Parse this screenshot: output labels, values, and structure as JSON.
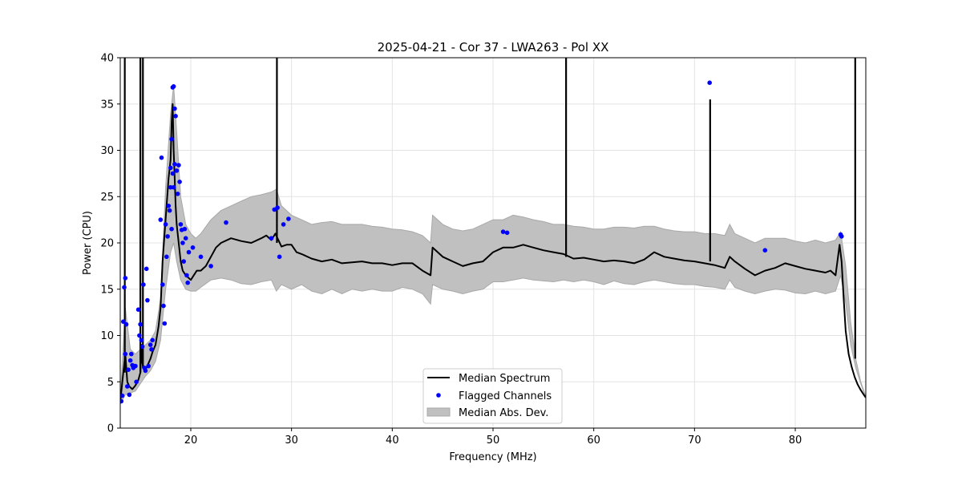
{
  "chart_data": {
    "type": "line",
    "title": "2025-04-21 - Cor 37 - LWA263 - Pol XX",
    "xlabel": "Frequency (MHz)",
    "ylabel": "Power (CPU)",
    "xlim": [
      13.0,
      87.0
    ],
    "ylim": [
      0,
      40
    ],
    "xticks": [
      20,
      30,
      40,
      50,
      60,
      70,
      80
    ],
    "yticks": [
      0,
      5,
      10,
      15,
      20,
      25,
      30,
      35,
      40
    ],
    "grid": true,
    "legend_position": "lower-center",
    "colors": {
      "median": "#000000",
      "flagged": "#0000ff",
      "mad": "#c0c0c0",
      "mad_edge": "#a8a8a8"
    },
    "series": [
      {
        "name": "Median Spectrum",
        "kind": "line",
        "x": [
          13.0,
          13.3,
          13.5,
          13.7,
          13.9,
          14.2,
          14.5,
          14.8,
          15.0,
          15.1,
          15.2,
          15.4,
          15.6,
          15.8,
          16.0,
          16.2,
          16.5,
          16.8,
          17.0,
          17.2,
          17.4,
          17.6,
          17.8,
          18.0,
          18.1,
          18.2,
          18.3,
          18.4,
          18.5,
          18.6,
          18.8,
          19.0,
          19.2,
          19.5,
          19.8,
          20.0,
          20.3,
          20.6,
          21.0,
          21.5,
          22.0,
          22.5,
          23.0,
          24.0,
          25.0,
          26.0,
          27.0,
          27.5,
          28.0,
          28.4,
          29.0,
          29.5,
          30.0,
          30.5,
          31.0,
          32.0,
          33.0,
          34.0,
          35.0,
          36.0,
          37.0,
          38.0,
          39.0,
          40.0,
          41.0,
          42.0,
          43.0,
          43.8,
          44.0,
          45.0,
          46.0,
          47.0,
          48.0,
          49.0,
          50.0,
          51.0,
          52.0,
          53.0,
          54.0,
          55.0,
          56.0,
          57.0,
          58.0,
          59.0,
          60.0,
          61.0,
          62.0,
          63.0,
          64.0,
          65.0,
          66.0,
          67.0,
          68.0,
          69.0,
          70.0,
          71.0,
          72.0,
          73.0,
          73.5,
          74.0,
          75.0,
          76.0,
          77.0,
          78.0,
          79.0,
          80.0,
          81.0,
          82.0,
          83.0,
          83.5,
          84.0,
          84.4,
          84.6,
          84.8,
          85.0,
          85.3,
          85.6,
          85.9,
          86.2,
          86.5,
          86.8,
          87.0
        ],
        "y": [
          2.8,
          6.0,
          8.0,
          5.0,
          4.5,
          4.2,
          4.6,
          5.2,
          6.0,
          9.0,
          7.0,
          6.2,
          6.5,
          7.0,
          7.5,
          8.2,
          9.0,
          11.0,
          13.0,
          18.0,
          21.0,
          24.0,
          27.0,
          29.0,
          33.0,
          35.0,
          30.0,
          27.0,
          24.0,
          22.0,
          20.0,
          18.0,
          17.0,
          16.5,
          16.2,
          16.0,
          16.5,
          17.0,
          17.0,
          17.5,
          18.5,
          19.5,
          20.0,
          20.5,
          20.2,
          20.0,
          20.5,
          20.8,
          20.3,
          21.0,
          19.6,
          19.8,
          19.8,
          19.0,
          18.8,
          18.3,
          18.0,
          18.2,
          17.8,
          17.9,
          18.0,
          17.8,
          17.8,
          17.6,
          17.8,
          17.8,
          17.0,
          16.5,
          19.5,
          18.5,
          18.0,
          17.5,
          17.8,
          18.0,
          19.0,
          19.5,
          19.5,
          19.8,
          19.5,
          19.2,
          19.0,
          18.8,
          18.3,
          18.4,
          18.2,
          18.0,
          18.1,
          18.0,
          17.8,
          18.2,
          19.0,
          18.5,
          18.3,
          18.1,
          18.0,
          17.8,
          17.6,
          17.3,
          18.5,
          18.0,
          17.2,
          16.5,
          17.0,
          17.3,
          17.8,
          17.5,
          17.2,
          17.0,
          16.8,
          17.0,
          16.5,
          19.8,
          18.0,
          14.0,
          10.5,
          8.0,
          6.6,
          5.5,
          4.7,
          4.1,
          3.6,
          3.3
        ]
      },
      {
        "name": "Flagged Channels",
        "kind": "scatter",
        "x": [
          13.1,
          13.2,
          13.3,
          13.4,
          13.5,
          13.5,
          13.6,
          13.7,
          13.8,
          13.9,
          14.0,
          14.1,
          14.2,
          14.3,
          14.5,
          14.6,
          14.8,
          14.9,
          15.0,
          15.1,
          15.2,
          15.3,
          15.4,
          15.5,
          15.6,
          15.7,
          15.8,
          16.0,
          16.1,
          16.2,
          17.0,
          17.1,
          17.2,
          17.3,
          17.4,
          17.5,
          17.6,
          17.7,
          17.8,
          17.9,
          18.0,
          18.0,
          18.1,
          18.1,
          18.2,
          18.2,
          18.3,
          18.3,
          18.4,
          18.4,
          18.5,
          18.6,
          18.7,
          18.8,
          18.9,
          19.0,
          19.1,
          19.2,
          19.3,
          19.4,
          19.5,
          19.6,
          19.7,
          19.8,
          20.2,
          21.0,
          22.0,
          23.5,
          28.0,
          28.3,
          28.6,
          28.8,
          29.2,
          29.7,
          51.0,
          51.4,
          77.0,
          71.5,
          84.5,
          84.6
        ],
        "y": [
          2.9,
          3.5,
          11.5,
          15.2,
          8.0,
          16.2,
          11.2,
          4.5,
          6.3,
          3.6,
          7.3,
          8.0,
          6.8,
          6.5,
          6.7,
          5.0,
          12.8,
          10.0,
          11.2,
          9.5,
          8.8,
          15.5,
          6.5,
          6.2,
          17.2,
          13.8,
          6.7,
          9.0,
          8.5,
          9.5,
          22.5,
          29.2,
          15.5,
          13.2,
          11.3,
          22.0,
          18.5,
          20.7,
          24.0,
          23.5,
          26.0,
          28.1,
          21.5,
          31.2,
          36.8,
          27.5,
          36.9,
          26.0,
          34.5,
          28.5,
          33.7,
          27.8,
          25.3,
          28.4,
          26.6,
          22.0,
          21.4,
          20.0,
          18.0,
          21.5,
          20.5,
          16.5,
          15.7,
          19.0,
          19.5,
          18.5,
          17.5,
          22.2,
          20.5,
          23.6,
          23.8,
          18.5,
          22.0,
          22.6,
          21.2,
          21.1,
          19.2,
          37.3,
          20.9,
          20.7
        ]
      },
      {
        "name": "Median Abs. Dev.",
        "kind": "band",
        "x": [
          13.0,
          13.5,
          14.0,
          14.5,
          15.0,
          15.5,
          16.0,
          16.5,
          17.0,
          17.5,
          18.0,
          18.3,
          18.6,
          19.0,
          19.5,
          20.0,
          20.5,
          21.0,
          22.0,
          23.0,
          24.0,
          25.0,
          26.0,
          27.0,
          28.0,
          28.5,
          29.0,
          30.0,
          31.0,
          32.0,
          33.0,
          34.0,
          35.0,
          36.0,
          37.0,
          38.0,
          39.0,
          40.0,
          41.0,
          42.0,
          43.0,
          43.8,
          44.0,
          45.0,
          46.0,
          47.0,
          48.0,
          49.0,
          50.0,
          51.0,
          52.0,
          53.0,
          54.0,
          55.0,
          56.0,
          57.0,
          58.0,
          59.0,
          60.0,
          61.0,
          62.0,
          63.0,
          64.0,
          65.0,
          66.0,
          67.0,
          68.0,
          69.0,
          70.0,
          71.0,
          72.0,
          73.0,
          73.5,
          74.0,
          75.0,
          76.0,
          77.0,
          78.0,
          79.0,
          80.0,
          81.0,
          82.0,
          83.0,
          84.0,
          84.5,
          85.0,
          85.5,
          86.0,
          86.5,
          87.0
        ],
        "low": [
          2.6,
          3.6,
          3.8,
          4.0,
          4.8,
          5.6,
          6.2,
          7.2,
          9.5,
          15.0,
          19.0,
          20.0,
          18.0,
          16.0,
          15.0,
          14.8,
          14.8,
          15.2,
          16.0,
          16.2,
          16.0,
          15.6,
          15.5,
          15.8,
          16.0,
          14.8,
          15.5,
          15.0,
          15.5,
          14.8,
          14.5,
          15.0,
          14.5,
          15.0,
          14.8,
          15.0,
          14.8,
          14.8,
          15.2,
          15.0,
          14.5,
          13.4,
          15.5,
          15.0,
          14.8,
          14.5,
          14.8,
          15.0,
          15.8,
          15.8,
          16.0,
          16.2,
          16.0,
          15.9,
          15.8,
          16.0,
          15.8,
          16.0,
          15.8,
          15.5,
          15.9,
          15.6,
          15.5,
          15.8,
          16.0,
          15.8,
          15.6,
          15.5,
          15.5,
          15.3,
          15.2,
          15.0,
          16.0,
          15.2,
          14.8,
          14.5,
          14.8,
          15.0,
          14.9,
          14.6,
          14.5,
          14.8,
          14.5,
          14.8,
          16.5,
          13.5,
          9.0,
          6.5,
          4.8,
          3.3
        ],
        "high": [
          3.2,
          13.0,
          8.5,
          8.0,
          8.5,
          9.0,
          9.5,
          10.5,
          14.0,
          26.0,
          34.0,
          37.0,
          32.0,
          25.0,
          22.0,
          21.0,
          20.5,
          21.0,
          22.5,
          23.5,
          24.0,
          24.5,
          25.0,
          25.2,
          25.5,
          25.8,
          24.0,
          23.0,
          22.5,
          22.0,
          22.2,
          22.3,
          22.0,
          22.0,
          22.0,
          21.8,
          21.7,
          21.5,
          21.4,
          21.2,
          20.8,
          20.0,
          23.0,
          22.0,
          21.5,
          21.3,
          21.5,
          22.0,
          22.5,
          22.5,
          23.0,
          22.8,
          22.5,
          22.3,
          22.0,
          22.0,
          21.8,
          21.7,
          21.5,
          21.5,
          21.7,
          21.7,
          21.6,
          21.8,
          21.8,
          21.5,
          21.3,
          21.2,
          21.2,
          21.0,
          21.0,
          20.8,
          22.0,
          21.0,
          20.5,
          20.0,
          20.5,
          20.5,
          20.5,
          20.2,
          20.0,
          20.3,
          20.0,
          20.3,
          21.2,
          17.5,
          11.5,
          7.5,
          5.0,
          3.4
        ]
      }
    ],
    "spikes": [
      {
        "x": 13.45,
        "y0": 6.0,
        "y1": 40
      },
      {
        "x": 15.0,
        "y0": 6.0,
        "y1": 40
      },
      {
        "x": 15.25,
        "y0": 6.5,
        "y1": 40
      },
      {
        "x": 28.55,
        "y0": 20.0,
        "y1": 40
      },
      {
        "x": 57.25,
        "y0": 18.5,
        "y1": 40
      },
      {
        "x": 71.55,
        "y0": 18.0,
        "y1": 35.5
      },
      {
        "x": 85.95,
        "y0": 7.5,
        "y1": 40
      }
    ]
  }
}
